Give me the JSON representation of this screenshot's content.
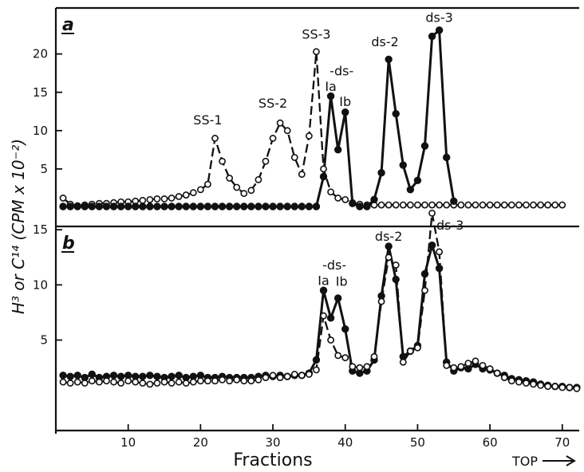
{
  "figure": {
    "shared_ylabel": "H³ or C¹⁴ (CPM x 10⁻²)",
    "xlabel": "Fractions",
    "top_label": "TOP"
  },
  "chart_data": [
    {
      "panel": "a",
      "type": "line",
      "xlim": [
        0,
        73
      ],
      "ylim": [
        -2.5,
        26
      ],
      "x_ticks": [
        10,
        20,
        30,
        40,
        50,
        60,
        70
      ],
      "y_ticks": [
        5,
        10,
        15,
        20
      ],
      "grid": false,
      "annotations": [
        {
          "text": "SS-1",
          "x": 21,
          "y": 10.8
        },
        {
          "text": "SS-2",
          "x": 30,
          "y": 13.0
        },
        {
          "text": "SS-3",
          "x": 36,
          "y": 22.0
        },
        {
          "text": "-ds-",
          "x": 39.5,
          "y": 17.2
        },
        {
          "text": "Ia",
          "x": 38,
          "y": 15.2
        },
        {
          "text": "Ib",
          "x": 40,
          "y": 13.2
        },
        {
          "text": "ds-2",
          "x": 45.5,
          "y": 21.0
        },
        {
          "text": "ds-3",
          "x": 53,
          "y": 24.2
        }
      ],
      "series": [
        {
          "marker": "open-circle",
          "line": "dashed",
          "x": [
            1,
            2,
            3,
            4,
            5,
            6,
            7,
            8,
            9,
            10,
            11,
            12,
            13,
            14,
            15,
            16,
            17,
            18,
            19,
            20,
            21,
            22,
            23,
            24,
            25,
            26,
            27,
            28,
            29,
            30,
            31,
            32,
            33,
            34,
            35,
            36,
            37,
            38,
            39,
            40,
            41,
            42,
            43,
            44,
            45,
            46,
            47,
            48,
            49,
            50,
            51,
            52,
            53,
            54,
            55,
            56,
            57,
            58,
            59,
            60,
            61,
            62,
            63,
            64,
            65,
            66,
            67,
            68,
            69,
            70
          ],
          "y": [
            1.2,
            0.4,
            0.2,
            0.3,
            0.4,
            0.5,
            0.5,
            0.6,
            0.7,
            0.7,
            0.8,
            0.9,
            1.0,
            1.1,
            1.1,
            1.2,
            1.4,
            1.6,
            1.9,
            2.3,
            3.0,
            9.0,
            6.0,
            3.8,
            2.6,
            1.8,
            2.2,
            3.6,
            6.0,
            9.0,
            11.0,
            10.0,
            6.5,
            4.3,
            9.3,
            20.3,
            5.0,
            2.0,
            1.2,
            1.0,
            0.6,
            0.4,
            0.3,
            0.3,
            0.3,
            0.3,
            0.3,
            0.3,
            0.3,
            0.3,
            0.3,
            0.3,
            0.3,
            0.3,
            0.3,
            0.3,
            0.3,
            0.3,
            0.3,
            0.3,
            0.3,
            0.3,
            0.3,
            0.3,
            0.3,
            0.3,
            0.3,
            0.3,
            0.3,
            0.3
          ]
        },
        {
          "marker": "filled-circle",
          "line": "solid",
          "x": [
            1,
            2,
            3,
            4,
            5,
            6,
            7,
            8,
            9,
            10,
            11,
            12,
            13,
            14,
            15,
            16,
            17,
            18,
            19,
            20,
            21,
            22,
            23,
            24,
            25,
            26,
            27,
            28,
            29,
            30,
            31,
            32,
            33,
            34,
            35,
            36,
            37,
            38,
            39,
            40,
            41,
            42,
            43,
            44,
            45,
            46,
            47,
            48,
            49,
            50,
            51,
            52,
            53,
            54,
            55
          ],
          "y": [
            0.1,
            0.1,
            0.1,
            0.1,
            0.1,
            0.1,
            0.1,
            0.1,
            0.1,
            0.1,
            0.1,
            0.1,
            0.1,
            0.1,
            0.1,
            0.1,
            0.1,
            0.1,
            0.1,
            0.1,
            0.1,
            0.1,
            0.1,
            0.1,
            0.1,
            0.1,
            0.1,
            0.1,
            0.1,
            0.1,
            0.1,
            0.1,
            0.1,
            0.1,
            0.1,
            0.1,
            4.0,
            14.5,
            7.5,
            12.4,
            0.5,
            0.1,
            0.1,
            1.0,
            4.5,
            19.3,
            12.2,
            5.5,
            2.3,
            3.5,
            8.0,
            22.3,
            23.1,
            6.5,
            0.8
          ]
        }
      ]
    },
    {
      "panel": "b",
      "type": "line",
      "xlim": [
        0,
        73
      ],
      "ylim": [
        -3.2,
        15.3
      ],
      "x_ticks": [
        10,
        20,
        30,
        40,
        50,
        60,
        70
      ],
      "y_ticks": [
        5,
        10,
        15
      ],
      "grid": false,
      "annotations": [
        {
          "text": "-ds-",
          "x": 38.5,
          "y": 11.4
        },
        {
          "text": "Ia",
          "x": 37,
          "y": 10.0
        },
        {
          "text": "Ib",
          "x": 39.5,
          "y": 9.9
        },
        {
          "text": "ds-2",
          "x": 46,
          "y": 14.0
        },
        {
          "text": "ds-3",
          "x": 54.5,
          "y": 15.0
        }
      ],
      "series": [
        {
          "marker": "filled-circle",
          "line": "solid",
          "x": [
            1,
            2,
            3,
            4,
            5,
            6,
            7,
            8,
            9,
            10,
            11,
            12,
            13,
            14,
            15,
            16,
            17,
            18,
            19,
            20,
            21,
            22,
            23,
            24,
            25,
            26,
            27,
            28,
            29,
            30,
            31,
            32,
            33,
            34,
            35,
            36,
            37,
            38,
            39,
            40,
            41,
            42,
            43,
            44,
            45,
            46,
            47,
            48,
            49,
            50,
            51,
            52,
            53,
            54,
            55,
            56,
            57,
            58,
            59,
            60,
            61,
            62,
            63,
            64,
            65,
            66,
            67,
            68,
            69,
            70,
            71,
            72
          ],
          "y": [
            1.8,
            1.7,
            1.8,
            1.6,
            1.9,
            1.6,
            1.7,
            1.8,
            1.7,
            1.8,
            1.7,
            1.7,
            1.8,
            1.7,
            1.6,
            1.7,
            1.8,
            1.6,
            1.7,
            1.8,
            1.6,
            1.6,
            1.7,
            1.6,
            1.6,
            1.6,
            1.6,
            1.7,
            1.8,
            1.7,
            1.8,
            1.7,
            1.8,
            1.8,
            2.0,
            3.2,
            9.5,
            7.0,
            8.8,
            6.0,
            2.2,
            2.0,
            2.2,
            3.2,
            9.0,
            13.5,
            10.5,
            3.5,
            4.0,
            4.5,
            11.0,
            13.6,
            11.5,
            3.0,
            2.2,
            2.5,
            2.4,
            2.8,
            2.4,
            2.3,
            2.0,
            1.8,
            1.5,
            1.4,
            1.3,
            1.2,
            1.0,
            0.9,
            0.8,
            0.8,
            0.7,
            0.7
          ]
        },
        {
          "marker": "open-circle",
          "line": "dashed",
          "x": [
            1,
            2,
            3,
            4,
            5,
            6,
            7,
            8,
            9,
            10,
            11,
            12,
            13,
            14,
            15,
            16,
            17,
            18,
            19,
            20,
            21,
            22,
            23,
            24,
            25,
            26,
            27,
            28,
            29,
            30,
            31,
            32,
            33,
            34,
            35,
            36,
            37,
            38,
            39,
            40,
            41,
            42,
            43,
            44,
            45,
            46,
            47,
            48,
            49,
            50,
            51,
            52,
            53,
            54,
            55,
            56,
            57,
            58,
            59,
            60,
            61,
            62,
            63,
            64,
            65,
            66,
            67,
            68,
            69,
            70,
            71,
            72
          ],
          "y": [
            1.2,
            1.1,
            1.2,
            1.1,
            1.3,
            1.2,
            1.3,
            1.2,
            1.1,
            1.3,
            1.2,
            1.1,
            1.0,
            1.1,
            1.2,
            1.1,
            1.2,
            1.1,
            1.2,
            1.3,
            1.3,
            1.3,
            1.4,
            1.3,
            1.4,
            1.3,
            1.3,
            1.4,
            1.6,
            1.8,
            1.6,
            1.7,
            1.9,
            1.8,
            1.9,
            2.3,
            7.2,
            5.0,
            3.6,
            3.4,
            2.6,
            2.5,
            2.6,
            3.5,
            8.5,
            12.5,
            11.8,
            3.0,
            4.0,
            4.3,
            9.5,
            16.5,
            13.0,
            2.7,
            2.5,
            2.6,
            2.9,
            3.1,
            2.7,
            2.4,
            2.0,
            1.6,
            1.3,
            1.2,
            1.1,
            1.0,
            0.9,
            0.8,
            0.8,
            0.7,
            0.7,
            0.6
          ]
        }
      ]
    }
  ]
}
